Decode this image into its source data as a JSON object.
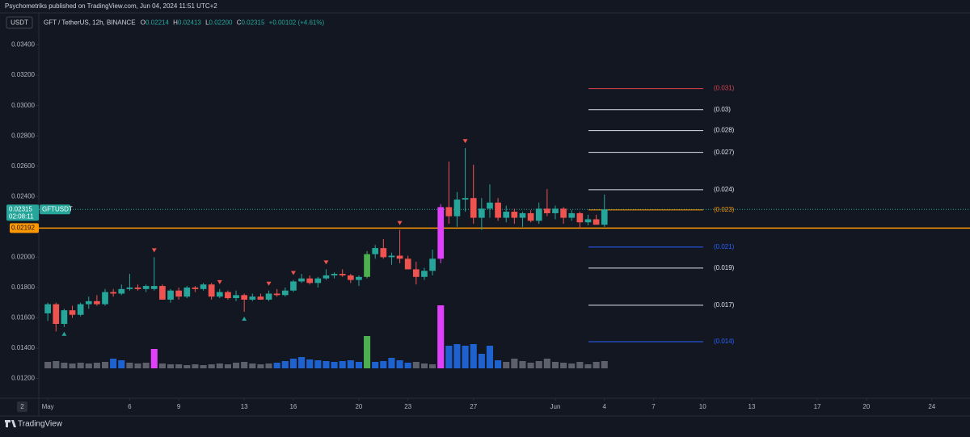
{
  "header": {
    "author_line": "Psychometriks published on TradingView.com, Jun 04, 2024 11:51 UTC+2",
    "currency": "USDT",
    "symbol": "GFT / TetherUS, 12h, BINANCE",
    "o_label": "O",
    "o": "0.02214",
    "h_label": "H",
    "h": "0.02413",
    "l_label": "L",
    "l": "0.02200",
    "c_label": "C",
    "c": "0.02315",
    "change": "+0.00102 (+4.61%)"
  },
  "footer": {
    "brand": "TradingView",
    "corner_label": "2"
  },
  "chart_data": {
    "type": "candlestick",
    "x": [
      0,
      1,
      2,
      3,
      4,
      5,
      6,
      7,
      8,
      9,
      10,
      11,
      12,
      13,
      14,
      15,
      16,
      17,
      18,
      19,
      20,
      21,
      22,
      23,
      24,
      25,
      26,
      27,
      28,
      29,
      30,
      31,
      32,
      33,
      34,
      35,
      36,
      37,
      38,
      39,
      40,
      41,
      42,
      43,
      44,
      45,
      46,
      47,
      48,
      49,
      50,
      51,
      52,
      53,
      54,
      55,
      56,
      57,
      58,
      59,
      60,
      61,
      62,
      63,
      64,
      65,
      66,
      67,
      68
    ],
    "open": [
      0.0163,
      0.0169,
      0.0156,
      0.0165,
      0.0162,
      0.0169,
      0.0171,
      0.0169,
      0.0177,
      0.0176,
      0.0179,
      0.018,
      0.0179,
      0.0179,
      0.0181,
      0.0172,
      0.0178,
      0.0174,
      0.018,
      0.0179,
      0.0182,
      0.0174,
      0.0177,
      0.0173,
      0.0175,
      0.0172,
      0.0174,
      0.0172,
      0.0176,
      0.0175,
      0.0178,
      0.0184,
      0.0186,
      0.0183,
      0.0186,
      0.0188,
      0.0189,
      0.0188,
      0.0185,
      0.0187,
      0.0202,
      0.0206,
      0.02,
      0.0201,
      0.0199,
      0.0192,
      0.0187,
      0.0191,
      0.0199,
      0.0233,
      0.0227,
      0.0238,
      0.0239,
      0.0226,
      0.0232,
      0.0236,
      0.0226,
      0.023,
      0.0226,
      0.0229,
      0.0224,
      0.0232,
      0.0229,
      0.0232,
      0.0226,
      0.0229,
      0.0223,
      0.0225,
      0.02214
    ],
    "high": [
      0.017,
      0.017,
      0.0166,
      0.0168,
      0.017,
      0.0174,
      0.0175,
      0.0179,
      0.0179,
      0.0182,
      0.0189,
      0.0182,
      0.0182,
      0.02,
      0.0182,
      0.0179,
      0.018,
      0.0181,
      0.0181,
      0.0183,
      0.0183,
      0.0179,
      0.0178,
      0.0178,
      0.0176,
      0.0176,
      0.0176,
      0.0178,
      0.0179,
      0.018,
      0.0185,
      0.0189,
      0.0188,
      0.0187,
      0.0192,
      0.019,
      0.0192,
      0.0189,
      0.0188,
      0.0204,
      0.0208,
      0.0212,
      0.0203,
      0.0218,
      0.0201,
      0.0197,
      0.0193,
      0.0205,
      0.0235,
      0.0263,
      0.0243,
      0.0272,
      0.0261,
      0.0239,
      0.0248,
      0.0239,
      0.0234,
      0.0232,
      0.023,
      0.0231,
      0.0236,
      0.0245,
      0.0234,
      0.0233,
      0.0231,
      0.023,
      0.0228,
      0.0228,
      0.02413
    ],
    "low": [
      0.0158,
      0.0151,
      0.0154,
      0.016,
      0.0161,
      0.0166,
      0.0168,
      0.0168,
      0.0174,
      0.0175,
      0.0178,
      0.0178,
      0.0177,
      0.0178,
      0.0172,
      0.017,
      0.0172,
      0.0173,
      0.0177,
      0.0178,
      0.0172,
      0.0173,
      0.0172,
      0.0171,
      0.0164,
      0.0171,
      0.0172,
      0.0171,
      0.0174,
      0.0174,
      0.0177,
      0.0183,
      0.0182,
      0.018,
      0.0185,
      0.0186,
      0.0187,
      0.0183,
      0.0181,
      0.0186,
      0.0199,
      0.0199,
      0.0195,
      0.0196,
      0.0192,
      0.0182,
      0.0185,
      0.0188,
      0.0196,
      0.0222,
      0.022,
      0.023,
      0.0222,
      0.0218,
      0.0226,
      0.0224,
      0.0223,
      0.0222,
      0.022,
      0.0223,
      0.0222,
      0.0227,
      0.0225,
      0.0222,
      0.0224,
      0.0219,
      0.0221,
      0.0222,
      0.022
    ],
    "close": [
      0.0169,
      0.0156,
      0.0165,
      0.0162,
      0.0169,
      0.0171,
      0.0169,
      0.0177,
      0.0176,
      0.0179,
      0.018,
      0.0179,
      0.0181,
      0.0181,
      0.0172,
      0.0178,
      0.0174,
      0.018,
      0.0179,
      0.0182,
      0.0174,
      0.0177,
      0.0173,
      0.0175,
      0.0172,
      0.0174,
      0.0172,
      0.0176,
      0.0175,
      0.0178,
      0.0184,
      0.0186,
      0.0183,
      0.0186,
      0.0188,
      0.0189,
      0.0188,
      0.0185,
      0.0187,
      0.0202,
      0.0206,
      0.02,
      0.0201,
      0.0199,
      0.0192,
      0.0187,
      0.0191,
      0.0199,
      0.0233,
      0.0227,
      0.0238,
      0.0239,
      0.0226,
      0.0232,
      0.0236,
      0.0226,
      0.023,
      0.0226,
      0.0229,
      0.0224,
      0.0232,
      0.0229,
      0.0232,
      0.0226,
      0.0229,
      0.0223,
      0.0225,
      0.02214,
      0.02315
    ],
    "colors": [
      "#26a69a",
      "#ef5350",
      "#26a69a",
      "#ef5350",
      "#26a69a",
      "#26a69a",
      "#ef5350",
      "#26a69a",
      "#ef5350",
      "#26a69a",
      "#26a69a",
      "#ef5350",
      "#26a69a",
      "#26a69a",
      "#ef5350",
      "#26a69a",
      "#ef5350",
      "#26a69a",
      "#ef5350",
      "#26a69a",
      "#ef5350",
      "#26a69a",
      "#ef5350",
      "#26a69a",
      "#ef5350",
      "#26a69a",
      "#ef5350",
      "#26a69a",
      "#ef5350",
      "#26a69a",
      "#26a69a",
      "#26a69a",
      "#ef5350",
      "#26a69a",
      "#26a69a",
      "#26a69a",
      "#ef5350",
      "#ef5350",
      "#26a69a",
      "#4caf50",
      "#26a69a",
      "#ef5350",
      "#26a69a",
      "#ef5350",
      "#ef5350",
      "#ef5350",
      "#26a69a",
      "#26a69a",
      "#e040fb",
      "#ef5350",
      "#26a69a",
      "#26a69a",
      "#ef5350",
      "#26a69a",
      "#26a69a",
      "#ef5350",
      "#26a69a",
      "#ef5350",
      "#26a69a",
      "#ef5350",
      "#26a69a",
      "#ef5350",
      "#26a69a",
      "#ef5350",
      "#26a69a",
      "#ef5350",
      "#26a69a",
      "#ef5350",
      "#26a69a"
    ],
    "volume": [
      8,
      9,
      7,
      6,
      7,
      6,
      7,
      8,
      12,
      10,
      7,
      6,
      7,
      24,
      6,
      5,
      5,
      4,
      5,
      4,
      5,
      6,
      5,
      7,
      8,
      6,
      5,
      6,
      7,
      9,
      12,
      14,
      11,
      10,
      9,
      8,
      9,
      10,
      8,
      40,
      8,
      9,
      13,
      10,
      7,
      8,
      6,
      5,
      78,
      28,
      30,
      28,
      30,
      18,
      28,
      10,
      8,
      12,
      9,
      7,
      9,
      12,
      8,
      7,
      6,
      8,
      5,
      8,
      9
    ],
    "volume_colors": [
      "#5d606b",
      "#5d606b",
      "#5d606b",
      "#5d606b",
      "#5d606b",
      "#5d606b",
      "#5d606b",
      "#5d606b",
      "#1e62d0",
      "#1e62d0",
      "#5d606b",
      "#5d606b",
      "#5d606b",
      "#e040fb",
      "#5d606b",
      "#5d606b",
      "#5d606b",
      "#5d606b",
      "#5d606b",
      "#5d606b",
      "#5d606b",
      "#5d606b",
      "#5d606b",
      "#5d606b",
      "#5d606b",
      "#5d606b",
      "#5d606b",
      "#5d606b",
      "#1e62d0",
      "#1e62d0",
      "#1e62d0",
      "#1e62d0",
      "#1e62d0",
      "#1e62d0",
      "#1e62d0",
      "#1e62d0",
      "#1e62d0",
      "#1e62d0",
      "#1e62d0",
      "#4caf50",
      "#1e62d0",
      "#1e62d0",
      "#1e62d0",
      "#1e62d0",
      "#1e62d0",
      "#5d606b",
      "#5d606b",
      "#5d606b",
      "#e040fb",
      "#1e62d0",
      "#1e62d0",
      "#1e62d0",
      "#1e62d0",
      "#1e62d0",
      "#1e62d0",
      "#1e62d0",
      "#5d606b",
      "#5d606b",
      "#5d606b",
      "#5d606b",
      "#5d606b",
      "#5d606b",
      "#5d606b",
      "#5d606b",
      "#5d606b",
      "#5d606b",
      "#5d606b",
      "#5d606b",
      "#5d606b"
    ],
    "sell_signals": [
      13,
      21,
      27,
      30,
      34,
      43,
      51
    ],
    "buy_signals": [
      2,
      24
    ],
    "xlim": [
      -1.1,
      109.7
    ],
    "xticks": [
      {
        "value": 0,
        "label": "May"
      },
      {
        "value": 10,
        "label": "6"
      },
      {
        "value": 16,
        "label": "9"
      },
      {
        "value": 24,
        "label": "13"
      },
      {
        "value": 30,
        "label": "16"
      },
      {
        "value": 38,
        "label": "20"
      },
      {
        "value": 44,
        "label": "23"
      },
      {
        "value": 52,
        "label": "27"
      },
      {
        "value": 62,
        "label": "Jun"
      },
      {
        "value": 68,
        "label": "4"
      },
      {
        "value": 74,
        "label": "7"
      },
      {
        "value": 80,
        "label": "10"
      },
      {
        "value": 86,
        "label": "13"
      },
      {
        "value": 94,
        "label": "17"
      },
      {
        "value": 100,
        "label": "20"
      },
      {
        "value": 108,
        "label": "24"
      }
    ],
    "ylim": [
      0.0107,
      0.036
    ],
    "yticks": [
      {
        "value": 0.012,
        "label": "0.01200"
      },
      {
        "value": 0.014,
        "label": "0.01400"
      },
      {
        "value": 0.016,
        "label": "0.01600"
      },
      {
        "value": 0.018,
        "label": "0.01800"
      },
      {
        "value": 0.02,
        "label": "0.02000"
      },
      {
        "value": 0.024,
        "label": "0.02400"
      },
      {
        "value": 0.026,
        "label": "0.02600"
      },
      {
        "value": 0.028,
        "label": "0.02800"
      },
      {
        "value": 0.03,
        "label": "0.03000"
      },
      {
        "value": 0.032,
        "label": "0.03200"
      },
      {
        "value": 0.034,
        "label": "0.03400"
      }
    ],
    "last_price": 0.02315,
    "last_price_color": "#26a69a",
    "countdown": "02:08:11",
    "symbol_tag": "GFTUSDT",
    "support": 0.02192,
    "support_color": "#ff9800",
    "levels": [
      {
        "value": 0.03112,
        "label": "(0.031)",
        "color": "#d9434f"
      },
      {
        "value": 0.02973,
        "label": "(0.03)",
        "color": "#e0e3eb"
      },
      {
        "value": 0.02835,
        "label": "(0.028)",
        "color": "#e0e3eb"
      },
      {
        "value": 0.02691,
        "label": "(0.027)",
        "color": "#e0e3eb"
      },
      {
        "value": 0.02445,
        "label": "(0.024)",
        "color": "#e0e3eb"
      },
      {
        "value": 0.02312,
        "label": "(0.023)",
        "color": "#ff9800"
      },
      {
        "value": 0.02067,
        "label": "(0.021)",
        "color": "#2962ff"
      },
      {
        "value": 0.01928,
        "label": "(0.019)",
        "color": "#e0e3eb"
      },
      {
        "value": 0.01683,
        "label": "(0.017)",
        "color": "#e0e3eb"
      },
      {
        "value": 0.01443,
        "label": "(0.014)",
        "color": "#2962ff"
      }
    ]
  }
}
